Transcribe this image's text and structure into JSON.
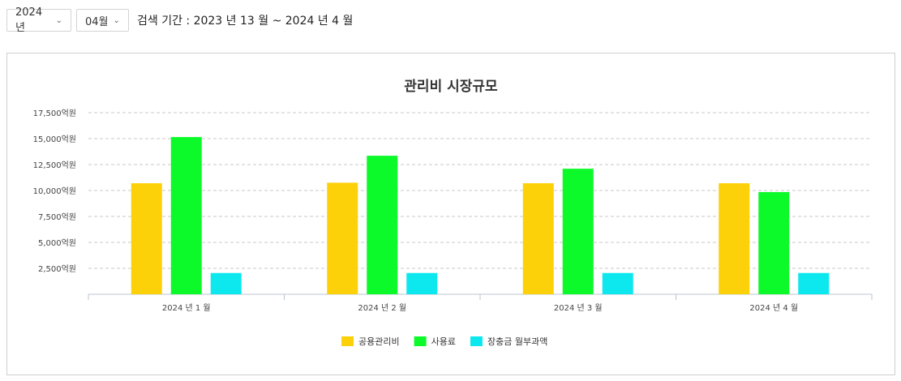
{
  "filters": {
    "year": "2024년",
    "month": "04월",
    "period_text": "검색 기간 : 2023 년 13 월 ~ 2024 년 4 월"
  },
  "icons": {
    "dropdown": "chevron-down-icon"
  },
  "chart_data": {
    "type": "bar",
    "title": "관리비 시장규모",
    "categories": [
      "2024 년 1 월",
      "2024 년 2 월",
      "2024 년 3 월",
      "2024 년 4 월"
    ],
    "series": [
      {
        "name": "공용관리비",
        "color": "#fdd10a",
        "values": [
          10700,
          10750,
          10700,
          10700
        ]
      },
      {
        "name": "사용료",
        "color": "#0cfa2a",
        "values": [
          15150,
          13350,
          12100,
          9850
        ]
      },
      {
        "name": "장충금 월부과액",
        "color": "#0de8ee",
        "values": [
          2050,
          2050,
          2050,
          2050
        ]
      }
    ],
    "yticks": [
      "2,500억원",
      "5,000억원",
      "7,500억원",
      "10,000억원",
      "12,500억원",
      "15,000억원",
      "17,500억원"
    ],
    "ylim": [
      0,
      17500
    ],
    "grid": true,
    "legend_position": "bottom"
  }
}
